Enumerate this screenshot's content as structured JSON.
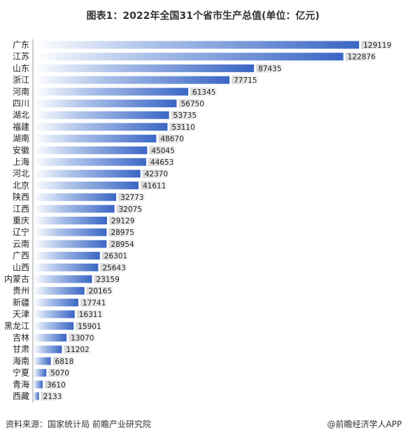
{
  "chart_data": {
    "type": "bar",
    "orientation": "horizontal",
    "title": "图表1：2022年全国31个省市生产总值(单位：亿元)",
    "categories": [
      "广东",
      "江苏",
      "山东",
      "浙江",
      "河南",
      "四川",
      "湖北",
      "福建",
      "湖南",
      "安徽",
      "上海",
      "河北",
      "北京",
      "陕西",
      "江西",
      "重庆",
      "辽宁",
      "云南",
      "广西",
      "山西",
      "内蒙古",
      "贵州",
      "新疆",
      "天津",
      "黑龙江",
      "吉林",
      "甘肃",
      "海南",
      "宁夏",
      "青海",
      "西藏"
    ],
    "values": [
      129119,
      122876,
      87435,
      77715,
      61345,
      56750,
      53735,
      53110,
      48670,
      45045,
      44653,
      42370,
      41611,
      32773,
      32075,
      29129,
      28975,
      28954,
      26301,
      25643,
      23159,
      20165,
      17741,
      16311,
      15901,
      13070,
      11202,
      6818,
      5070,
      3610,
      2133
    ],
    "data_labels": [
      "129119",
      "122876",
      "87435",
      "77715",
      "61345",
      "56750",
      "53735",
      "53110",
      "48670",
      "45045",
      "44653",
      "42370",
      "41611",
      "32773",
      "32075",
      "29129",
      "28975",
      "28954",
      "26301",
      "25643",
      "23159",
      "20165",
      "17741",
      "16311",
      "15901",
      "13070",
      "11202",
      "6818",
      "5070",
      "3610",
      "2133"
    ],
    "bar_color": "#3a66c4",
    "xlim": [
      0,
      129119
    ]
  },
  "footer": {
    "source": "资料来源：国家统计局 前瞻产业研究院",
    "brand": "@前瞻经济学人APP"
  }
}
